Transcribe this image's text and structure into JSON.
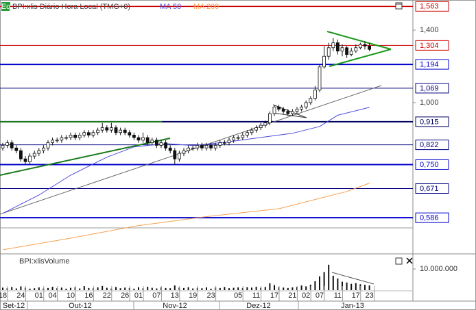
{
  "chart_data": {
    "type": "candlestick",
    "icon": "Eq",
    "title": "BPI:xlis Diário Hora Local (TMG+0)",
    "log_scale": true,
    "ylim": [
      0.497,
      1.61
    ],
    "yticks": [
      {
        "value": 1.4,
        "label": "1,400"
      },
      {
        "value": 1.0,
        "label": "1,000"
      }
    ],
    "categories": [
      "18",
      null,
      null,
      null,
      "24",
      null,
      null,
      null,
      "01",
      null,
      null,
      "04",
      null,
      null,
      null,
      "10",
      null,
      null,
      null,
      "16",
      null,
      null,
      null,
      "22",
      null,
      null,
      null,
      "26",
      null,
      null,
      "01",
      null,
      null,
      null,
      "07",
      null,
      null,
      null,
      "13",
      null,
      null,
      null,
      "19",
      null,
      null,
      null,
      "23",
      null,
      null,
      null,
      null,
      null,
      "05",
      null,
      null,
      null,
      "11",
      null,
      null,
      null,
      "17",
      null,
      null,
      null,
      "21",
      null,
      null,
      "02",
      null,
      null,
      "07",
      null,
      null,
      null,
      "11",
      null,
      null,
      null,
      "17",
      null,
      null,
      "23"
    ],
    "months": [
      "Set-12",
      "Out-12",
      "Nov-12",
      "Dez-12",
      "Jan-13"
    ],
    "ohlc": [
      [
        0.81,
        0.83,
        0.8,
        0.82
      ],
      [
        0.82,
        0.84,
        0.81,
        0.83
      ],
      [
        0.83,
        0.84,
        0.8,
        0.81
      ],
      [
        0.81,
        0.82,
        0.79,
        0.8
      ],
      [
        0.8,
        0.81,
        0.76,
        0.77
      ],
      [
        0.77,
        0.78,
        0.75,
        0.76
      ],
      [
        0.76,
        0.79,
        0.75,
        0.78
      ],
      [
        0.78,
        0.8,
        0.77,
        0.79
      ],
      [
        0.79,
        0.81,
        0.78,
        0.8
      ],
      [
        0.8,
        0.82,
        0.79,
        0.81
      ],
      [
        0.81,
        0.84,
        0.8,
        0.83
      ],
      [
        0.83,
        0.85,
        0.82,
        0.84
      ],
      [
        0.84,
        0.85,
        0.83,
        0.84
      ],
      [
        0.84,
        0.86,
        0.83,
        0.85
      ],
      [
        0.85,
        0.86,
        0.84,
        0.85
      ],
      [
        0.85,
        0.87,
        0.84,
        0.86
      ],
      [
        0.86,
        0.87,
        0.84,
        0.85
      ],
      [
        0.85,
        0.87,
        0.84,
        0.86
      ],
      [
        0.86,
        0.88,
        0.85,
        0.87
      ],
      [
        0.87,
        0.88,
        0.85,
        0.86
      ],
      [
        0.86,
        0.88,
        0.85,
        0.87
      ],
      [
        0.87,
        0.89,
        0.86,
        0.88
      ],
      [
        0.88,
        0.91,
        0.87,
        0.89
      ],
      [
        0.89,
        0.9,
        0.87,
        0.88
      ],
      [
        0.88,
        0.91,
        0.87,
        0.89
      ],
      [
        0.89,
        0.9,
        0.86,
        0.87
      ],
      [
        0.87,
        0.89,
        0.86,
        0.88
      ],
      [
        0.88,
        0.89,
        0.86,
        0.87
      ],
      [
        0.87,
        0.88,
        0.85,
        0.86
      ],
      [
        0.86,
        0.87,
        0.84,
        0.85
      ],
      [
        0.85,
        0.86,
        0.83,
        0.84
      ],
      [
        0.84,
        0.87,
        0.83,
        0.85
      ],
      [
        0.85,
        0.86,
        0.82,
        0.83
      ],
      [
        0.83,
        0.85,
        0.82,
        0.84
      ],
      [
        0.84,
        0.85,
        0.81,
        0.82
      ],
      [
        0.82,
        0.84,
        0.81,
        0.83
      ],
      [
        0.83,
        0.84,
        0.8,
        0.81
      ],
      [
        0.81,
        0.82,
        0.79,
        0.8
      ],
      [
        0.8,
        0.81,
        0.75,
        0.77
      ],
      [
        0.77,
        0.8,
        0.76,
        0.79
      ],
      [
        0.79,
        0.81,
        0.78,
        0.8
      ],
      [
        0.8,
        0.82,
        0.79,
        0.81
      ],
      [
        0.81,
        0.82,
        0.8,
        0.81
      ],
      [
        0.81,
        0.83,
        0.8,
        0.82
      ],
      [
        0.82,
        0.83,
        0.8,
        0.81
      ],
      [
        0.81,
        0.83,
        0.8,
        0.82
      ],
      [
        0.82,
        0.83,
        0.8,
        0.81
      ],
      [
        0.81,
        0.83,
        0.8,
        0.82
      ],
      [
        0.82,
        0.84,
        0.81,
        0.83
      ],
      [
        0.83,
        0.84,
        0.82,
        0.83
      ],
      [
        0.83,
        0.85,
        0.82,
        0.84
      ],
      [
        0.84,
        0.86,
        0.83,
        0.85
      ],
      [
        0.85,
        0.86,
        0.84,
        0.85
      ],
      [
        0.85,
        0.87,
        0.84,
        0.86
      ],
      [
        0.86,
        0.88,
        0.85,
        0.87
      ],
      [
        0.87,
        0.89,
        0.86,
        0.88
      ],
      [
        0.88,
        0.9,
        0.87,
        0.89
      ],
      [
        0.89,
        0.91,
        0.88,
        0.9
      ],
      [
        0.9,
        0.92,
        0.89,
        0.91
      ],
      [
        0.91,
        0.96,
        0.9,
        0.95
      ],
      [
        0.95,
        0.99,
        0.94,
        0.98
      ],
      [
        0.98,
        0.99,
        0.96,
        0.97
      ],
      [
        0.97,
        0.98,
        0.95,
        0.96
      ],
      [
        0.96,
        0.97,
        0.94,
        0.95
      ],
      [
        0.95,
        0.97,
        0.94,
        0.96
      ],
      [
        0.96,
        0.98,
        0.95,
        0.97
      ],
      [
        0.97,
        0.99,
        0.96,
        0.98
      ],
      [
        0.98,
        1.01,
        0.97,
        1.0
      ],
      [
        1.0,
        1.03,
        0.99,
        1.02
      ],
      [
        1.02,
        1.08,
        1.01,
        1.06
      ],
      [
        1.06,
        1.19,
        1.05,
        1.18
      ],
      [
        1.18,
        1.3,
        1.17,
        1.24
      ],
      [
        1.24,
        1.32,
        1.22,
        1.29
      ],
      [
        1.29,
        1.35,
        1.27,
        1.32
      ],
      [
        1.32,
        1.34,
        1.25,
        1.27
      ],
      [
        1.27,
        1.31,
        1.24,
        1.29
      ],
      [
        1.29,
        1.3,
        1.23,
        1.25
      ],
      [
        1.25,
        1.29,
        1.24,
        1.27
      ],
      [
        1.27,
        1.31,
        1.26,
        1.29
      ],
      [
        1.29,
        1.32,
        1.28,
        1.31
      ],
      [
        1.31,
        1.33,
        1.28,
        1.3
      ],
      [
        1.3,
        1.32,
        1.27,
        1.28
      ]
    ],
    "ma": [
      {
        "name": "MA 50",
        "color": "#4a4ae0",
        "x": [
          0,
          8,
          15,
          23,
          29,
          36,
          42,
          50,
          58,
          64,
          70,
          74,
          81
        ],
        "values": [
          0.598,
          0.651,
          0.714,
          0.776,
          0.814,
          0.827,
          0.819,
          0.834,
          0.853,
          0.867,
          0.895,
          0.943,
          0.978
        ]
      },
      {
        "name": "MA 200",
        "color": "#f5a050",
        "x": [
          0,
          15,
          30,
          45,
          61,
          70,
          76,
          81
        ],
        "values": [
          0.505,
          0.533,
          0.565,
          0.589,
          0.611,
          0.641,
          0.662,
          0.688
        ]
      }
    ],
    "levels": [
      {
        "value": 1.563,
        "label": "1,563",
        "color": "#cc0000",
        "width": 1.5
      },
      {
        "value": 1.304,
        "label": "1,304",
        "color": "#cc0000",
        "width": 1
      },
      {
        "value": 1.194,
        "label": "1,194",
        "color": "#0000cc",
        "width": 2
      },
      {
        "value": 1.069,
        "label": "1,069",
        "color": "#000080",
        "width": 1
      },
      {
        "value": 0.915,
        "label": "0,915",
        "color": "#000060",
        "width": 2
      },
      {
        "value": 0.822,
        "label": "0,822",
        "color": "#000080",
        "width": 1
      },
      {
        "value": 0.75,
        "label": "0,750",
        "color": "#0000cc",
        "width": 2
      },
      {
        "value": 0.671,
        "label": "0,671",
        "color": "#000080",
        "width": 1
      },
      {
        "value": 0.586,
        "label": "0,586",
        "color": "#0000cc",
        "width": 2
      }
    ],
    "volume": {
      "title": "BPI:xlisVolume",
      "ylim": [
        0,
        15800000
      ],
      "yticks": [
        {
          "value": 10000000,
          "label": "10.000.000"
        }
      ],
      "values": [
        1200000,
        900000,
        1500000,
        800000,
        1800000,
        1100000,
        700000,
        900000,
        1300000,
        800000,
        1000000,
        1600000,
        900000,
        1200000,
        700000,
        1100000,
        1400000,
        800000,
        1900000,
        1000000,
        900000,
        1300000,
        2000000,
        1100000,
        800000,
        1500000,
        900000,
        1200000,
        1000000,
        700000,
        1400000,
        900000,
        1600000,
        1100000,
        800000,
        1300000,
        1000000,
        900000,
        2200000,
        1200000,
        1000000,
        1400000,
        800000,
        1100000,
        900000,
        1300000,
        700000,
        1200000,
        1000000,
        1500000,
        900000,
        1100000,
        1300000,
        1000000,
        1400000,
        1200000,
        1600000,
        1100000,
        1500000,
        3200000,
        2400000,
        1400000,
        1200000,
        1000000,
        1300000,
        1500000,
        2200000,
        1800000,
        2600000,
        4200000,
        6500000,
        8500000,
        12000000,
        6800000,
        5500000,
        4000000,
        3600000,
        3000000,
        3300000,
        2800000,
        2500000,
        2200000
      ]
    }
  }
}
